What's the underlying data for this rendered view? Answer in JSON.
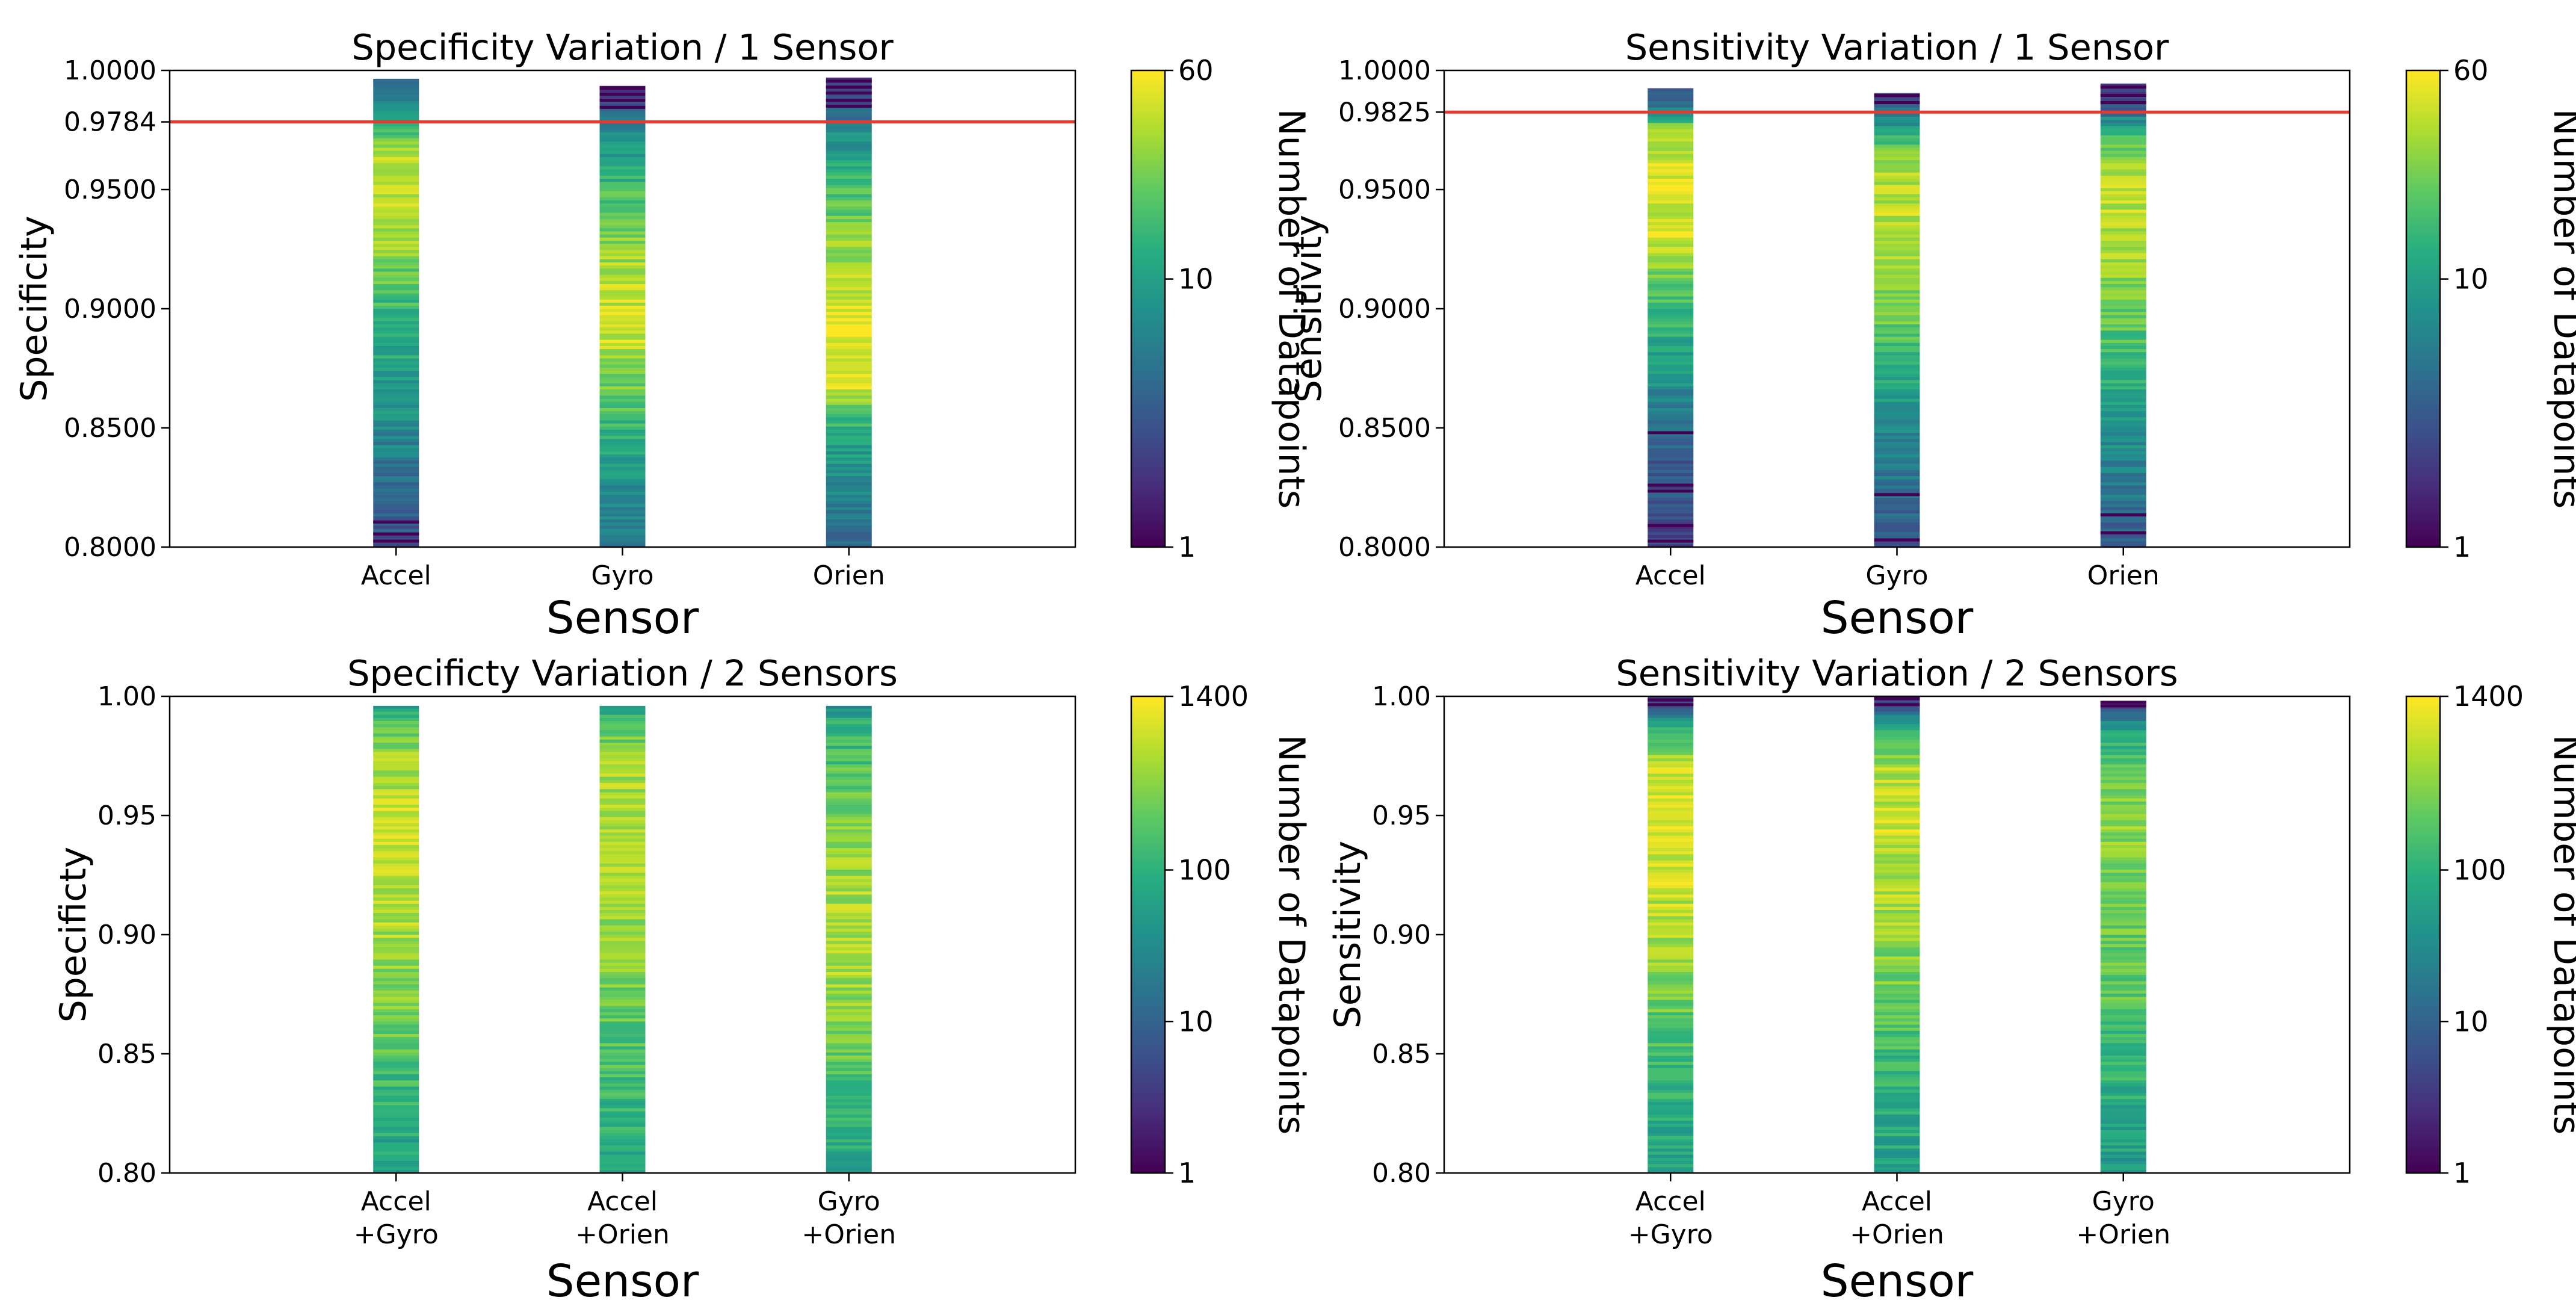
{
  "colormap": [
    "#440154",
    "#472d7b",
    "#3b528b",
    "#2c728e",
    "#21918c",
    "#28ae80",
    "#5ec962",
    "#addc30",
    "#fde725"
  ],
  "reference_line_color": "#e8392f",
  "chart_data": [
    {
      "id": "spec1",
      "type": "heatmap",
      "title": "Specificity Variation / 1 Sensor",
      "xlabel": "Sensor",
      "ylabel": "Specificity",
      "ylim": [
        0.8,
        1.0
      ],
      "yticks": [
        0.8,
        0.85,
        0.9,
        0.95,
        0.9784,
        1.0
      ],
      "ytick_labels": [
        "0.8000",
        "0.8500",
        "0.9000",
        "0.9500",
        "0.9784",
        "1.0000"
      ],
      "categories": [
        "Accel",
        "Gyro",
        "Orien"
      ],
      "reference_line": 0.9784,
      "colorbar": {
        "label": "Number of Datapoints",
        "min": 1,
        "max": 60,
        "ticks": [
          1,
          10,
          60
        ],
        "tick_labels": [
          "1",
          "10",
          "60"
        ]
      },
      "columns": [
        {
          "name": "Accel",
          "y_min": 0.8,
          "y_max": 0.9965,
          "profile": [
            [
              0.8,
              0.25
            ],
            [
              0.83,
              0.38
            ],
            [
              0.86,
              0.52
            ],
            [
              0.9,
              0.66
            ],
            [
              0.93,
              0.86
            ],
            [
              0.96,
              0.93
            ],
            [
              0.975,
              0.7
            ],
            [
              0.99,
              0.4
            ],
            [
              0.9965,
              0.28
            ]
          ],
          "dark_lines": [
            0.8025,
            0.8055,
            0.8105
          ],
          "seed": 11
        },
        {
          "name": "Gyro",
          "y_min": 0.8,
          "y_max": 0.9935,
          "profile": [
            [
              0.8,
              0.4
            ],
            [
              0.83,
              0.52
            ],
            [
              0.86,
              0.72
            ],
            [
              0.89,
              0.93
            ],
            [
              0.92,
              0.86
            ],
            [
              0.95,
              0.7
            ],
            [
              0.97,
              0.5
            ],
            [
              0.985,
              0.3
            ],
            [
              0.9935,
              0.12
            ]
          ],
          "dark_lines": [
            0.9925,
            0.99,
            0.9875,
            0.9845
          ],
          "seed": 23
        },
        {
          "name": "Orien",
          "y_min": 0.8,
          "y_max": 0.997,
          "profile": [
            [
              0.8,
              0.36
            ],
            [
              0.83,
              0.48
            ],
            [
              0.85,
              0.62
            ],
            [
              0.87,
              0.96
            ],
            [
              0.9,
              0.95
            ],
            [
              0.93,
              0.82
            ],
            [
              0.96,
              0.62
            ],
            [
              0.98,
              0.4
            ],
            [
              0.997,
              0.1
            ]
          ],
          "dark_lines": [
            0.9955,
            0.993,
            0.9905,
            0.9875,
            0.985
          ],
          "seed": 37
        }
      ]
    },
    {
      "id": "sens1",
      "type": "heatmap",
      "title": "Sensitivity Variation / 1 Sensor",
      "xlabel": "Sensor",
      "ylabel": "Sensitivity",
      "ylim": [
        0.8,
        1.0
      ],
      "yticks": [
        0.8,
        0.85,
        0.9,
        0.95,
        0.9825,
        1.0
      ],
      "ytick_labels": [
        "0.8000",
        "0.8500",
        "0.9000",
        "0.9500",
        "0.9825",
        "1.0000"
      ],
      "categories": [
        "Accel",
        "Gyro",
        "Orien"
      ],
      "reference_line": 0.9825,
      "colorbar": {
        "label": "Number of Datapoints",
        "min": 1,
        "max": 60,
        "ticks": [
          1,
          10,
          60
        ],
        "tick_labels": [
          "1",
          "10",
          "60"
        ]
      },
      "columns": [
        {
          "name": "Accel",
          "y_min": 0.8,
          "y_max": 0.9925,
          "profile": [
            [
              0.8,
              0.18
            ],
            [
              0.84,
              0.3
            ],
            [
              0.87,
              0.5
            ],
            [
              0.9,
              0.68
            ],
            [
              0.93,
              0.92
            ],
            [
              0.96,
              0.96
            ],
            [
              0.975,
              0.85
            ],
            [
              0.985,
              0.4
            ],
            [
              0.9925,
              0.2
            ]
          ],
          "dark_lines": [
            0.826,
            0.8235,
            0.809,
            0.848,
            0.8025
          ],
          "seed": 41
        },
        {
          "name": "Gyro",
          "y_min": 0.8,
          "y_max": 0.9905,
          "profile": [
            [
              0.8,
              0.28
            ],
            [
              0.84,
              0.44
            ],
            [
              0.87,
              0.6
            ],
            [
              0.9,
              0.78
            ],
            [
              0.93,
              0.9
            ],
            [
              0.96,
              0.88
            ],
            [
              0.975,
              0.6
            ],
            [
              0.985,
              0.3
            ],
            [
              0.9905,
              0.15
            ]
          ],
          "dark_lines": [
            0.9895,
            0.9865,
            0.803,
            0.822
          ],
          "seed": 53
        },
        {
          "name": "Orien",
          "y_min": 0.8,
          "y_max": 0.9945,
          "profile": [
            [
              0.8,
              0.3
            ],
            [
              0.83,
              0.42
            ],
            [
              0.87,
              0.64
            ],
            [
              0.9,
              0.76
            ],
            [
              0.93,
              0.88
            ],
            [
              0.96,
              0.9
            ],
            [
              0.975,
              0.62
            ],
            [
              0.985,
              0.3
            ],
            [
              0.9945,
              0.1
            ]
          ],
          "dark_lines": [
            0.993,
            0.9895,
            0.9865,
            0.806,
            0.8135
          ],
          "seed": 67
        }
      ]
    },
    {
      "id": "spec2",
      "type": "heatmap",
      "title": "Specificty Variation / 2 Sensors",
      "xlabel": "Sensor",
      "ylabel": "Specificty",
      "ylim": [
        0.8,
        1.0
      ],
      "yticks": [
        0.8,
        0.85,
        0.9,
        0.95,
        1.0
      ],
      "ytick_labels": [
        "0.80",
        "0.85",
        "0.90",
        "0.95",
        "1.00"
      ],
      "categories": [
        "Accel\n+Gyro",
        "Accel\n+Orien",
        "Gyro\n+Orien"
      ],
      "reference_line": null,
      "colorbar": {
        "label": "Number of Datapoints",
        "min": 1,
        "max": 1400,
        "ticks": [
          1,
          10,
          100,
          1400
        ],
        "tick_labels": [
          "1",
          "10",
          "100",
          "1400"
        ]
      },
      "columns": [
        {
          "name": "Accel+Gyro",
          "y_min": 0.8,
          "y_max": 0.996,
          "profile": [
            [
              0.8,
              0.56
            ],
            [
              0.83,
              0.64
            ],
            [
              0.86,
              0.76
            ],
            [
              0.89,
              0.84
            ],
            [
              0.92,
              0.9
            ],
            [
              0.95,
              0.92
            ],
            [
              0.97,
              0.87
            ],
            [
              0.99,
              0.74
            ],
            [
              0.996,
              0.56
            ]
          ],
          "dark_lines": [],
          "seed": 71
        },
        {
          "name": "Accel+Orien",
          "y_min": 0.8,
          "y_max": 0.996,
          "profile": [
            [
              0.8,
              0.58
            ],
            [
              0.83,
              0.66
            ],
            [
              0.86,
              0.74
            ],
            [
              0.89,
              0.82
            ],
            [
              0.92,
              0.86
            ],
            [
              0.95,
              0.88
            ],
            [
              0.97,
              0.86
            ],
            [
              0.99,
              0.72
            ],
            [
              0.996,
              0.55
            ]
          ],
          "dark_lines": [],
          "seed": 83
        },
        {
          "name": "Gyro+Orien",
          "y_min": 0.8,
          "y_max": 0.996,
          "profile": [
            [
              0.8,
              0.58
            ],
            [
              0.83,
              0.68
            ],
            [
              0.86,
              0.8
            ],
            [
              0.89,
              0.88
            ],
            [
              0.92,
              0.86
            ],
            [
              0.95,
              0.78
            ],
            [
              0.97,
              0.72
            ],
            [
              0.99,
              0.64
            ],
            [
              0.996,
              0.48
            ]
          ],
          "dark_lines": [],
          "seed": 97
        }
      ]
    },
    {
      "id": "sens2",
      "type": "heatmap",
      "title": "Sensitivity Variation / 2 Sensors",
      "xlabel": "Sensor",
      "ylabel": "Sensitivity",
      "ylim": [
        0.8,
        1.0
      ],
      "yticks": [
        0.8,
        0.85,
        0.9,
        0.95,
        1.0
      ],
      "ytick_labels": [
        "0.80",
        "0.85",
        "0.90",
        "0.95",
        "1.00"
      ],
      "categories": [
        "Accel\n+Gyro",
        "Accel\n+Orien",
        "Gyro\n+Orien"
      ],
      "reference_line": null,
      "colorbar": {
        "label": "Number of Datapoints",
        "min": 1,
        "max": 1400,
        "ticks": [
          1,
          10,
          100,
          1400
        ],
        "tick_labels": [
          "1",
          "10",
          "100",
          "1400"
        ]
      },
      "columns": [
        {
          "name": "Accel+Gyro",
          "y_min": 0.8,
          "y_max": 1.0,
          "profile": [
            [
              0.8,
              0.56
            ],
            [
              0.84,
              0.66
            ],
            [
              0.88,
              0.8
            ],
            [
              0.92,
              0.92
            ],
            [
              0.95,
              0.96
            ],
            [
              0.97,
              0.9
            ],
            [
              0.985,
              0.7
            ],
            [
              0.993,
              0.4
            ],
            [
              1.0,
              0.1
            ]
          ],
          "dark_lines": [
            0.9985,
            0.9965
          ],
          "seed": 101
        },
        {
          "name": "Accel+Orien",
          "y_min": 0.8,
          "y_max": 1.0,
          "profile": [
            [
              0.8,
              0.56
            ],
            [
              0.84,
              0.64
            ],
            [
              0.88,
              0.78
            ],
            [
              0.92,
              0.88
            ],
            [
              0.95,
              0.92
            ],
            [
              0.97,
              0.88
            ],
            [
              0.985,
              0.66
            ],
            [
              0.993,
              0.35
            ],
            [
              1.0,
              0.1
            ]
          ],
          "dark_lines": [
            0.999,
            0.9965
          ],
          "seed": 113
        },
        {
          "name": "Gyro+Orien",
          "y_min": 0.8,
          "y_max": 0.998,
          "profile": [
            [
              0.8,
              0.54
            ],
            [
              0.84,
              0.64
            ],
            [
              0.88,
              0.74
            ],
            [
              0.92,
              0.8
            ],
            [
              0.95,
              0.82
            ],
            [
              0.97,
              0.76
            ],
            [
              0.985,
              0.6
            ],
            [
              0.993,
              0.35
            ],
            [
              0.998,
              0.08
            ]
          ],
          "dark_lines": [
            0.9975,
            0.996
          ],
          "seed": 127
        }
      ]
    }
  ]
}
